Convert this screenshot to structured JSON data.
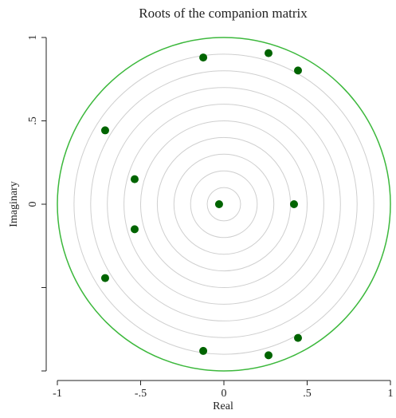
{
  "chart_data": {
    "type": "scatter",
    "title": "Roots of the companion matrix",
    "xlabel": "Real",
    "ylabel": "Imaginary",
    "x": [
      -0.124,
      0.268,
      0.445,
      -0.713,
      -0.536,
      -0.029,
      0.421,
      -0.536,
      -0.713,
      0.445,
      -0.124,
      0.268
    ],
    "values": [
      0.88,
      0.906,
      0.802,
      0.443,
      0.15,
      0,
      0,
      -0.15,
      -0.443,
      -0.802,
      -0.88,
      -0.906
    ],
    "color": "#006400",
    "unit_circle_color": "#3cb83c",
    "grid_circles": [
      0.1,
      0.2,
      0.3,
      0.4,
      0.5,
      0.6,
      0.7,
      0.8,
      0.9
    ],
    "xlim": [
      -1,
      1
    ],
    "ylim": [
      -1,
      1
    ],
    "xticks": [
      -1,
      {
        "value": -0.5,
        "label": "-.5"
      },
      0,
      {
        "value": 0.5,
        "label": ".5"
      },
      1
    ],
    "yticks": [
      1,
      {
        "value": 0.5,
        "label": ".5"
      },
      0
    ],
    "yticks_unlabeled": [
      -0.5,
      -1
    ]
  }
}
